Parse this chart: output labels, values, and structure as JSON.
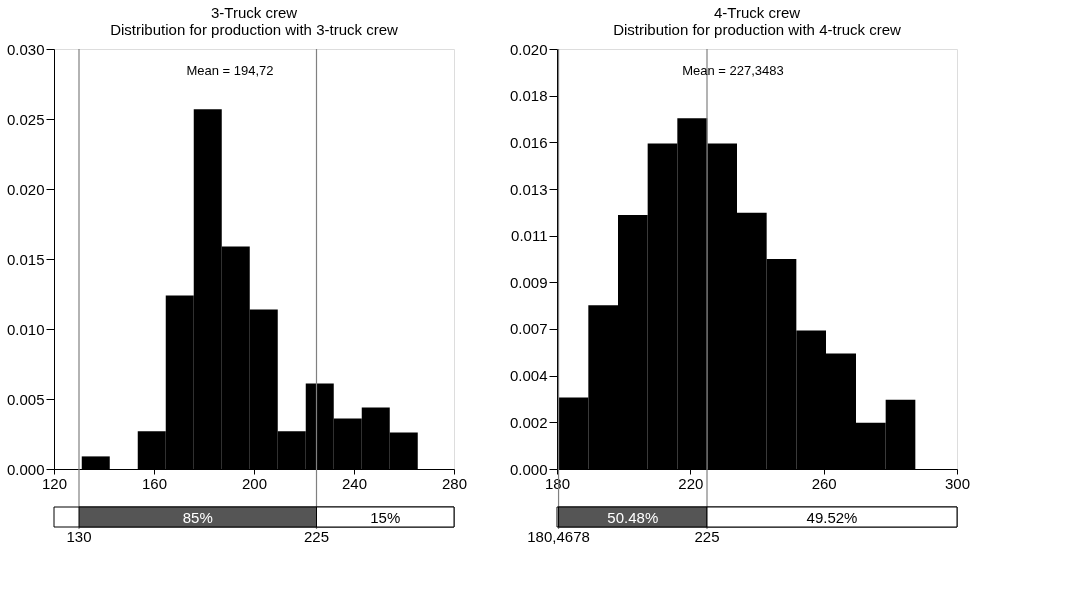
{
  "chart_data": [
    {
      "type": "histogram",
      "title": "3-Truck crew",
      "subtitle": "Distribution for production with 3-truck crew",
      "bins": [
        131.1,
        142.3,
        153.5,
        164.7,
        175.9,
        187.1,
        198.3,
        209.5,
        220.7,
        231.9,
        243.1,
        254.3,
        265.5
      ],
      "values": [
        0.0009,
        0,
        0.0027,
        0.0124,
        0.0257,
        0.0159,
        0.0114,
        0.0027,
        0.0061,
        0.0036,
        0.0044,
        0.0026
      ],
      "color": "#000000",
      "xlim": [
        120,
        280
      ],
      "xticks": [
        120,
        160,
        200,
        240,
        280
      ],
      "ylim": [
        0,
        0.03
      ],
      "yticks": [
        {
          "value": 0,
          "label": "0.000"
        },
        {
          "value": 0.005,
          "label": "0.005"
        },
        {
          "value": 0.01,
          "label": "0.010"
        },
        {
          "value": 0.015,
          "label": "0.015"
        },
        {
          "value": 0.02,
          "label": "0.020"
        },
        {
          "value": 0.025,
          "label": "0.025"
        },
        {
          "value": 0.03,
          "label": "0.030"
        }
      ],
      "grid": false,
      "ref_lines": [
        {
          "axis": "x",
          "value": 130,
          "label": "130",
          "color": "#808080"
        },
        {
          "axis": "x",
          "value": 225,
          "label": "225",
          "color": "#808080"
        }
      ],
      "annotations": [
        "Mean = 194,72",
        "85%",
        "15%"
      ]
    },
    {
      "type": "histogram",
      "title": "4-Truck crew",
      "subtitle": "Distribution for production with 4-truck crew",
      "bins": [
        180.5,
        189.4,
        198.3,
        207.2,
        216.1,
        225.1,
        234.0,
        242.9,
        251.8,
        260.7,
        269.7,
        278.6,
        287.5
      ],
      "values": [
        0.0034,
        0.0078,
        0.0121,
        0.0155,
        0.0167,
        0.0155,
        0.0122,
        0.01,
        0.0066,
        0.0055,
        0.0022,
        0.0033
      ],
      "color": "#000000",
      "xlim": [
        180,
        300
      ],
      "xticks": [
        180,
        220,
        260,
        300
      ],
      "ylim": [
        0,
        0.02
      ],
      "yticks": [
        {
          "value": 0,
          "label": "0.000"
        },
        {
          "value": 0.00222,
          "label": "0.002"
        },
        {
          "value": 0.00444,
          "label": "0.004"
        },
        {
          "value": 0.00667,
          "label": "0.007"
        },
        {
          "value": 0.00889,
          "label": "0.009"
        },
        {
          "value": 0.01111,
          "label": "0.011"
        },
        {
          "value": 0.01333,
          "label": "0.013"
        },
        {
          "value": 0.01556,
          "label": "0.016"
        },
        {
          "value": 0.01778,
          "label": "0.018"
        },
        {
          "value": 0.02,
          "label": "0.020"
        }
      ],
      "grid": false,
      "ref_lines": [
        {
          "axis": "x",
          "value": 180.4678,
          "label": "180,4678",
          "color": "#808080"
        },
        {
          "axis": "x",
          "value": 225,
          "label": "225",
          "color": "#808080"
        }
      ],
      "annotations": [
        "Mean = 227,3483",
        "50.48%",
        "49.52%"
      ]
    }
  ]
}
